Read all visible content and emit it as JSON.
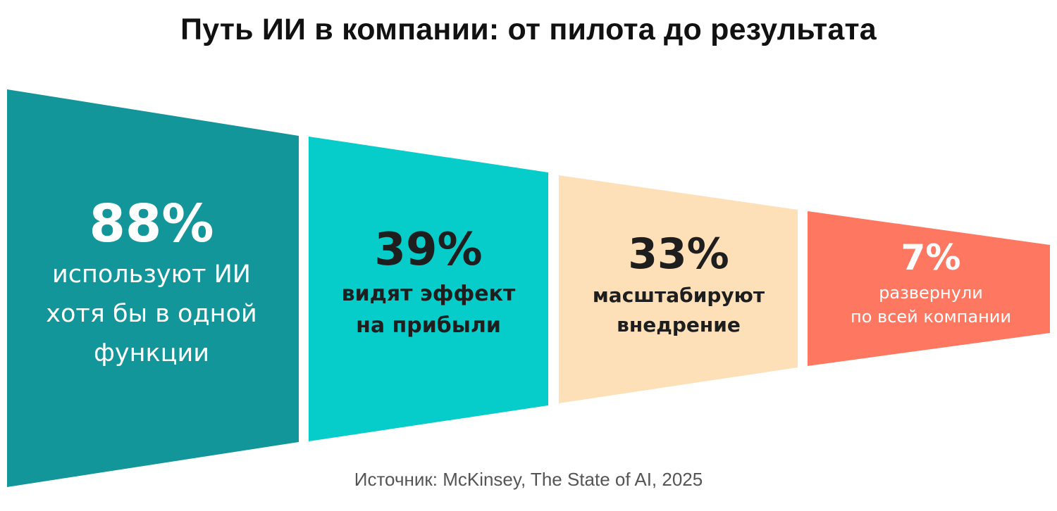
{
  "title": "Путь ИИ в компании: от пилота до результата",
  "stages": [
    {
      "value": "88%",
      "line1": "используют ИИ",
      "line2": "хотя бы в одной",
      "line3": "функции",
      "color": "#12969a",
      "text_color": "#ffffff"
    },
    {
      "value": "39%",
      "line1": "видят эффект",
      "line2": "на прибыли",
      "color": "#06ccca",
      "text_color": "#1e1e1e"
    },
    {
      "value": "33%",
      "line1": "масштабируют",
      "line2": "внедрение",
      "color": "#fde0b8",
      "text_color": "#1e1e1e"
    },
    {
      "value": "7%",
      "line1": "развернули",
      "line2": "по всей компании",
      "color": "#fe7861",
      "text_color": "#ffffff"
    }
  ],
  "source": "Источник: McKinsey, The State of AI, 2025"
}
